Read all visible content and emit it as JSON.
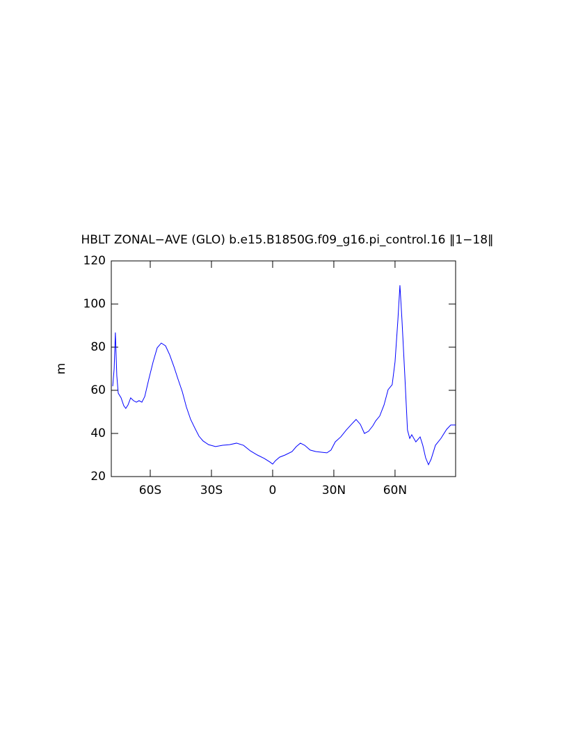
{
  "chart_data": {
    "type": "line",
    "title": "HBLT ZONAL−AVE (GLO) b.e15.B1850G.f09_g16.pi_control.16 ‖1−18‖",
    "y_label": "m",
    "xlim": [
      -79.1,
      89.7
    ],
    "ylim": [
      20,
      120
    ],
    "xticks": [
      {
        "value": -60,
        "label": "60S"
      },
      {
        "value": -30,
        "label": "30S"
      },
      0,
      {
        "value": 30,
        "label": "30N"
      },
      {
        "value": 60,
        "label": "60N"
      }
    ],
    "yticks": [
      20,
      40,
      60,
      80,
      100,
      120
    ],
    "x": [
      -78.4,
      -77.7,
      -77.1,
      -76.4,
      -75.7,
      -74.3,
      -73,
      -72,
      -70.9,
      -69.6,
      -68.2,
      -66.8,
      -65.5,
      -64.1,
      -62.7,
      -60.7,
      -58.6,
      -56.6,
      -54.6,
      -52.5,
      -50.5,
      -48.4,
      -46.4,
      -44.3,
      -42.3,
      -40.2,
      -38.2,
      -36.1,
      -34.1,
      -31.4,
      -28,
      -24.5,
      -21.1,
      -17.7,
      -14.3,
      -10.9,
      -7.5,
      -4.1,
      -1.4,
      0,
      1.4,
      3.4,
      6.1,
      9.5,
      11.6,
      13.6,
      15.7,
      18.4,
      21.1,
      23.9,
      26.6,
      28.6,
      30.7,
      33.4,
      36.1,
      38.9,
      40.9,
      43,
      45,
      47,
      49.1,
      50.5,
      52.5,
      54.6,
      56.6,
      58.6,
      60,
      61.4,
      62.4,
      63.4,
      64.8,
      66.1,
      67.2,
      68.2,
      70.2,
      72.3,
      73.6,
      75,
      76.4,
      77.7,
      79.8,
      82.5,
      85.3,
      87.3,
      89.7
    ],
    "series": [
      {
        "color": "#0000ff",
        "values": [
          61.9,
          70,
          86.8,
          66.8,
          58.7,
          56.5,
          52.9,
          51.6,
          53.2,
          56.5,
          55.2,
          54.5,
          55.2,
          54.5,
          57.1,
          65.2,
          73.2,
          79.7,
          81.9,
          80.6,
          76.5,
          71,
          65.2,
          59.4,
          52.3,
          46.5,
          42.6,
          38.7,
          36.5,
          34.8,
          33.9,
          34.5,
          34.8,
          35.5,
          34.5,
          31.9,
          30,
          28.4,
          26.8,
          25.8,
          27.4,
          29,
          30,
          31.6,
          33.9,
          35.5,
          34.5,
          32.3,
          31.6,
          31.3,
          31,
          32.3,
          36.1,
          38.4,
          41.6,
          44.5,
          46.5,
          44.2,
          40,
          41,
          43.5,
          45.8,
          48.1,
          53.2,
          60.3,
          62.6,
          73.2,
          92.6,
          108.7,
          92.6,
          66.8,
          41.6,
          37.7,
          39.4,
          36.1,
          38.4,
          34.5,
          28.7,
          25.5,
          28.1,
          34.5,
          37.7,
          41.9,
          43.9,
          43.9
        ]
      }
    ]
  }
}
